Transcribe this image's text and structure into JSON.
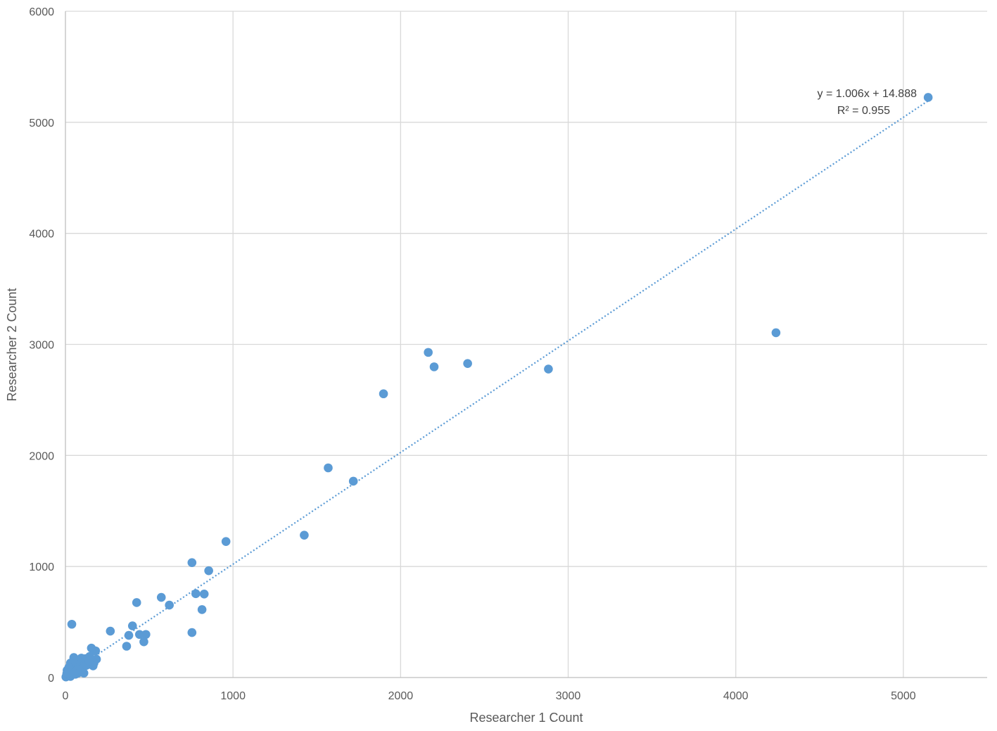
{
  "chart_data": {
    "type": "scatter",
    "xlabel": "Researcher 1 Count",
    "ylabel": "Researcher 2 Count",
    "xlim": [
      0,
      5500
    ],
    "ylim": [
      0,
      6000
    ],
    "x_ticks": [
      0,
      1000,
      2000,
      3000,
      4000,
      5000
    ],
    "y_ticks": [
      0,
      1000,
      2000,
      3000,
      4000,
      5000,
      6000
    ],
    "x_tick_labels": [
      "0",
      "1000",
      "2000",
      "3000",
      "4000",
      "5000"
    ],
    "y_tick_labels": [
      "0",
      "1000",
      "2000",
      "3000",
      "4000",
      "5000",
      "6000"
    ],
    "grid": true,
    "color": "#5b9bd5",
    "trendline": {
      "slope": 1.006,
      "intercept": 14.888,
      "equation": "y = 1.006x + 14.888",
      "r_squared": "R² = 0.955"
    },
    "points": [
      [
        5148,
        5224
      ],
      [
        4240,
        3105
      ],
      [
        2882,
        2778
      ],
      [
        2400,
        2828
      ],
      [
        2200,
        2798
      ],
      [
        2165,
        2928
      ],
      [
        1898,
        2555
      ],
      [
        1718,
        1768
      ],
      [
        1568,
        1888
      ],
      [
        1425,
        1282
      ],
      [
        958,
        1225
      ],
      [
        855,
        962
      ],
      [
        828,
        752
      ],
      [
        815,
        612
      ],
      [
        778,
        755
      ],
      [
        755,
        1035
      ],
      [
        755,
        405
      ],
      [
        620,
        652
      ],
      [
        572,
        722
      ],
      [
        480,
        388
      ],
      [
        468,
        322
      ],
      [
        442,
        388
      ],
      [
        425,
        675
      ],
      [
        400,
        465
      ],
      [
        378,
        380
      ],
      [
        365,
        282
      ],
      [
        268,
        418
      ],
      [
        185,
        165
      ],
      [
        180,
        240
      ],
      [
        170,
        130
      ],
      [
        165,
        105
      ],
      [
        155,
        265
      ],
      [
        145,
        190
      ],
      [
        135,
        160
      ],
      [
        120,
        170
      ],
      [
        110,
        130
      ],
      [
        100,
        100
      ],
      [
        95,
        175
      ],
      [
        90,
        60
      ],
      [
        85,
        140
      ],
      [
        80,
        110
      ],
      [
        75,
        40
      ],
      [
        70,
        160
      ],
      [
        65,
        90
      ],
      [
        60,
        120
      ],
      [
        55,
        60
      ],
      [
        50,
        180
      ],
      [
        45,
        100
      ],
      [
        40,
        70
      ],
      [
        38,
        480
      ],
      [
        35,
        30
      ],
      [
        30,
        130
      ],
      [
        25,
        80
      ],
      [
        20,
        50
      ],
      [
        15,
        20
      ],
      [
        10,
        65
      ],
      [
        8,
        35
      ],
      [
        5,
        10
      ],
      [
        3,
        5
      ],
      [
        110,
        40
      ],
      [
        100,
        80
      ],
      [
        125,
        110
      ],
      [
        140,
        150
      ],
      [
        60,
        30
      ],
      [
        30,
        10
      ],
      [
        20,
        90
      ],
      [
        12,
        40
      ],
      [
        70,
        70
      ],
      [
        50,
        40
      ]
    ]
  }
}
